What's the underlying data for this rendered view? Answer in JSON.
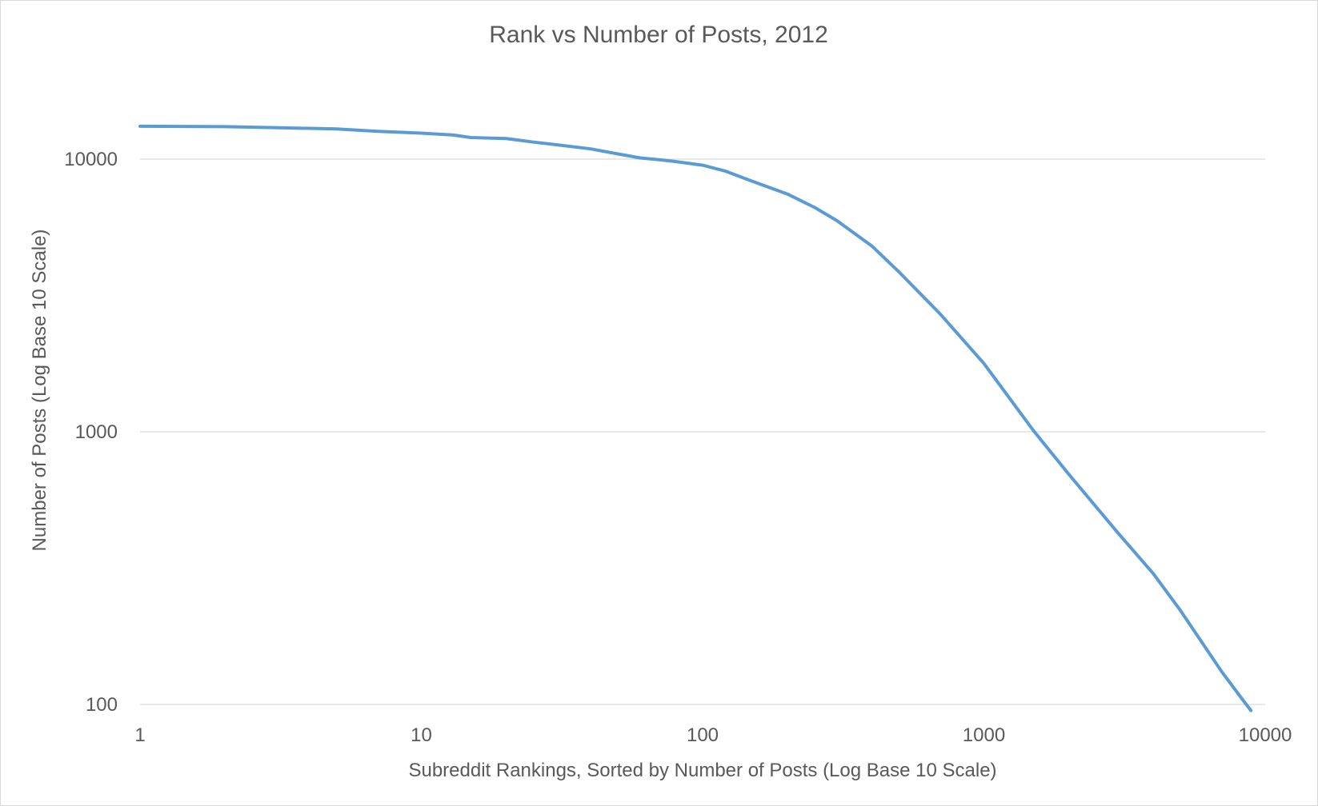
{
  "chart_data": {
    "type": "line",
    "title": "Rank vs Number of Posts, 2012",
    "xlabel": "Subreddit Rankings, Sorted by Number of Posts  (Log Base 10 Scale)",
    "ylabel": "Number of Posts (Log Base 10 Scale)",
    "x_scale": "log10",
    "y_scale": "log10",
    "xlim": [
      1,
      10000
    ],
    "ylim": [
      100,
      20000
    ],
    "x_ticks": [
      1,
      10,
      100,
      1000,
      10000
    ],
    "x_tick_labels": [
      "1",
      "10",
      "100",
      "1000",
      "10000"
    ],
    "y_ticks": [
      100,
      1000,
      10000
    ],
    "y_tick_labels": [
      "100",
      "1000",
      "10000"
    ],
    "grid": "horizontal",
    "legend": "none",
    "colors": {
      "series": "#5b9bd5",
      "grid": "#d9d9d9",
      "text": "#595959"
    },
    "series": [
      {
        "x": [
          1,
          2,
          3,
          5,
          7,
          10,
          13,
          15,
          20,
          25,
          30,
          40,
          50,
          60,
          70,
          80,
          100,
          120,
          150,
          200,
          250,
          300,
          400,
          500,
          700,
          1000,
          1500,
          2000,
          3000,
          4000,
          5000,
          7000,
          8500,
          8900
        ],
        "y": [
          13200,
          13150,
          13050,
          12900,
          12650,
          12450,
          12250,
          12000,
          11900,
          11550,
          11300,
          10900,
          10450,
          10100,
          9950,
          9800,
          9500,
          9050,
          8300,
          7450,
          6650,
          5950,
          4800,
          3850,
          2700,
          1780,
          1010,
          700,
          425,
          302,
          221,
          132,
          101,
          95
        ]
      }
    ]
  }
}
